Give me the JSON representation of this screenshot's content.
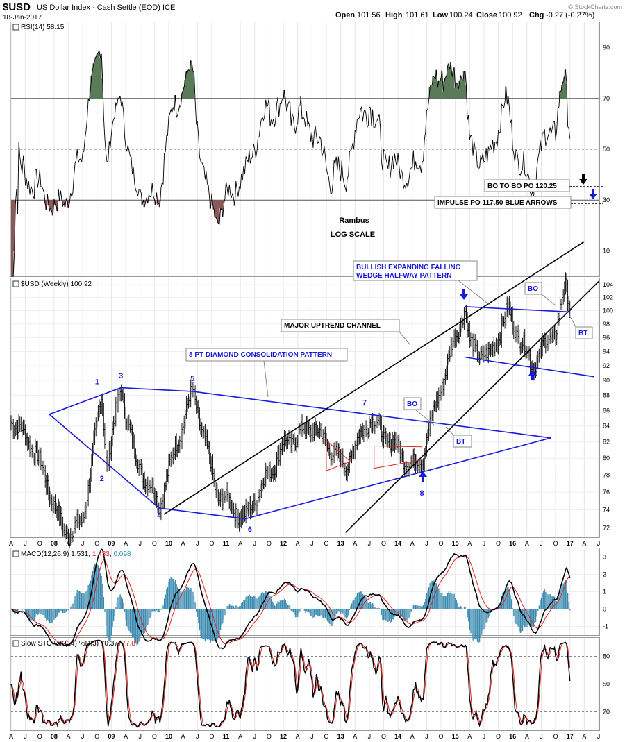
{
  "header": {
    "symbol": "$USD",
    "name": "US Dollar Index - Cash Settle (EOD) ICE",
    "date": "18-Jan-2017",
    "open_label": "Open",
    "open": "101.56",
    "high_label": "High",
    "high": "101.61",
    "low_label": "Low",
    "low": "100.24",
    "close_label": "Close",
    "close": "100.92",
    "chg_label": "Chg",
    "chg": "-0.27 (-0.27%)",
    "watermark": "© StockCharts.com"
  },
  "colors": {
    "pattern_blue": "#1a1adc",
    "trend_black": "#000000",
    "triangle_red": "#e02020",
    "rsi_fill_green": "#5a7a5a",
    "rsi_fill_red": "#8a5a5a",
    "macd_hist": "#3a8ab0",
    "macd_signal": "#e02020",
    "macd_value": "#e02020",
    "macd_hist_value": "#2090b0"
  },
  "rsi_panel": {
    "legend": "RSI(14) 58.15",
    "levels": [
      90,
      70,
      50,
      30,
      10
    ],
    "annotations": {
      "rambus": "Rambus",
      "log_scale": "LOG SCALE",
      "bo_to_bo": "BO TO BO PO 120.25",
      "impulse": "IMPULSE PO 117.50 BLUE ARROWS"
    }
  },
  "price_panel": {
    "legend": "$USD (Weekly) 100.92",
    "y_ticks": [
      72,
      74,
      76,
      78,
      80,
      82,
      84,
      86,
      88,
      90,
      92,
      94,
      96,
      98,
      100,
      102,
      104
    ],
    "scale": "log",
    "annotations": {
      "bullish": "BULLISH EXPANDING FALLING WEDGE HALFWAY PATTERN",
      "bullish_line1": "BULLISH EXPANDING FALLING",
      "bullish_line2": "WEDGE HALFWAY PATTERN",
      "uptrend": "MAJOR UPTREND CHANNEL",
      "diamond": "8 PT DIAMOND CONSOLIDATION PATTERN",
      "bo": "BO",
      "bt": "BT"
    },
    "points": [
      "1",
      "2",
      "3",
      "4",
      "5",
      "6",
      "7",
      "8"
    ]
  },
  "macd_panel": {
    "legend_prefix": "MACD(12,26,9)",
    "macd": "1.531",
    "signal": "1.433",
    "hist": "0.098",
    "y_ticks": [
      "3",
      "2",
      "1",
      "0",
      "-1"
    ]
  },
  "sto_panel": {
    "legend_prefix": "Slow STO %K(14) %D(3)",
    "k": "70.37",
    "d": "77.87",
    "y_ticks": [
      "80",
      "50",
      "20"
    ]
  },
  "x_axis": {
    "labels": [
      "A",
      "J",
      "O",
      "08",
      "A",
      "J",
      "O",
      "09",
      "A",
      "J",
      "O",
      "10",
      "A",
      "J",
      "O",
      "11",
      "A",
      "J",
      "O",
      "12",
      "A",
      "J",
      "O",
      "13",
      "A",
      "J",
      "O",
      "14",
      "A",
      "J",
      "O",
      "15",
      "A",
      "J",
      "O",
      "16",
      "A",
      "J",
      "O",
      "17",
      "A",
      "J"
    ]
  },
  "chart_data": {
    "type": "line",
    "title": "$USD US Dollar Index - Cash Settle (EOD) ICE",
    "frequency": "weekly",
    "x_range": [
      "2007-04",
      "2017-06"
    ],
    "ylim": [
      71,
      105
    ],
    "price_key_points": [
      {
        "date": "2007-04",
        "value": 85.0
      },
      {
        "date": "2007-09",
        "value": 81.0
      },
      {
        "date": "2008-03",
        "value": 71.5
      },
      {
        "date": "2008-07",
        "value": 72.5
      },
      {
        "date": "2008-11",
        "value": 88.0
      },
      {
        "date": "2008-12",
        "value": 79.0
      },
      {
        "date": "2009-03",
        "value": 89.0
      },
      {
        "date": "2009-06",
        "value": 80.0
      },
      {
        "date": "2009-11",
        "value": 74.5
      },
      {
        "date": "2010-06",
        "value": 88.5
      },
      {
        "date": "2010-11",
        "value": 76.0
      },
      {
        "date": "2011-05",
        "value": 73.0
      },
      {
        "date": "2012-01",
        "value": 81.5
      },
      {
        "date": "2012-07",
        "value": 84.0
      },
      {
        "date": "2013-02",
        "value": 79.0
      },
      {
        "date": "2013-07",
        "value": 85.0
      },
      {
        "date": "2014-04",
        "value": 79.0
      },
      {
        "date": "2014-06",
        "value": 80.0
      },
      {
        "date": "2015-03",
        "value": 100.5
      },
      {
        "date": "2015-04",
        "value": 95.0
      },
      {
        "date": "2015-08",
        "value": 93.0
      },
      {
        "date": "2015-12",
        "value": 100.0
      },
      {
        "date": "2016-05",
        "value": 92.0
      },
      {
        "date": "2016-10",
        "value": 97.0
      },
      {
        "date": "2016-12",
        "value": 103.5
      },
      {
        "date": "2017-01",
        "value": 100.92
      }
    ],
    "rsi_14": {
      "last": 58.15,
      "ylim": [
        0,
        100
      ],
      "levels": [
        30,
        50,
        70
      ]
    },
    "macd": {
      "macd": 1.531,
      "signal": 1.433,
      "histogram": 0.098,
      "ylim": [
        -1.5,
        3.5
      ]
    },
    "slow_sto": {
      "k": 70.37,
      "d": 77.87,
      "levels": [
        20,
        50,
        80
      ],
      "ylim": [
        0,
        100
      ]
    },
    "targets": [
      {
        "label": "BO TO BO PO 120.25",
        "value": 120.25
      },
      {
        "label": "IMPULSE PO 117.50 BLUE ARROWS",
        "value": 117.5
      }
    ]
  }
}
